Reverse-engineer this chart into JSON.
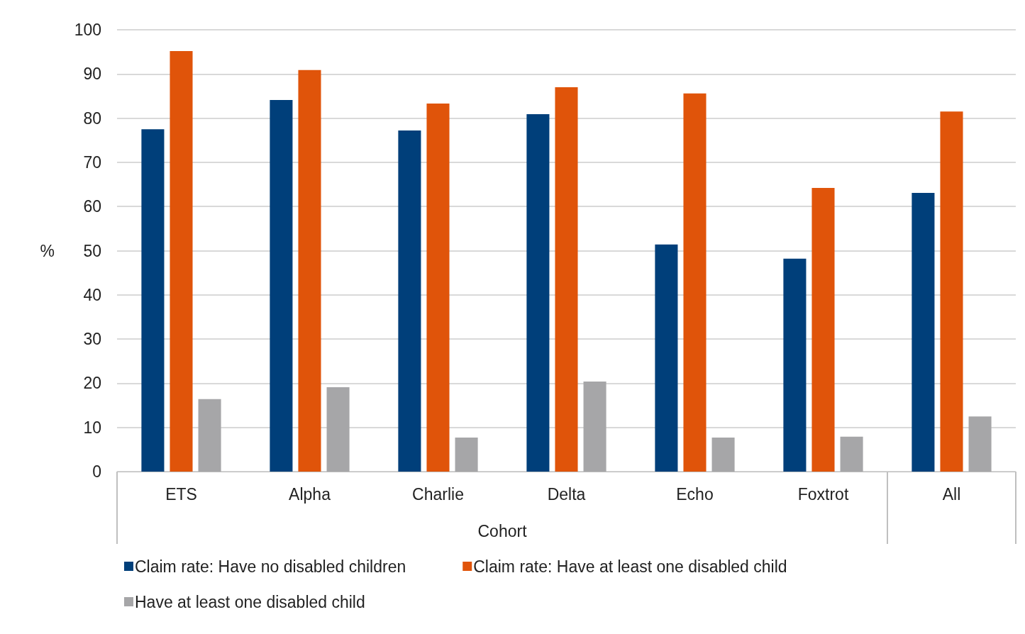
{
  "chart_data": {
    "type": "bar",
    "ylabel": "%",
    "categories": [
      "ETS",
      "Alpha",
      "Charlie",
      "Delta",
      "Echo",
      "Foxtrot",
      "All"
    ],
    "series": [
      {
        "name": "Claim rate: Have no disabled children",
        "color": "#003f7a",
        "values": [
          77.5,
          84.1,
          77.2,
          80.9,
          51.4,
          48.2,
          63.1
        ]
      },
      {
        "name": "Claim rate: Have at least one disabled child",
        "color": "#e0540a",
        "values": [
          95.2,
          90.9,
          83.3,
          87.0,
          85.6,
          64.2,
          81.5
        ]
      },
      {
        "name": "Have at least one disabled child",
        "color": "#a6a6a8",
        "values": [
          16.4,
          19.1,
          7.7,
          20.4,
          7.7,
          7.9,
          12.5
        ]
      }
    ],
    "annotations": [
      "Cohort"
    ],
    "ylim": [
      0,
      100
    ],
    "yticks": [
      0,
      10,
      20,
      30,
      40,
      50,
      60,
      70,
      80,
      90,
      100
    ],
    "grid": "y",
    "legend": "bottom"
  }
}
